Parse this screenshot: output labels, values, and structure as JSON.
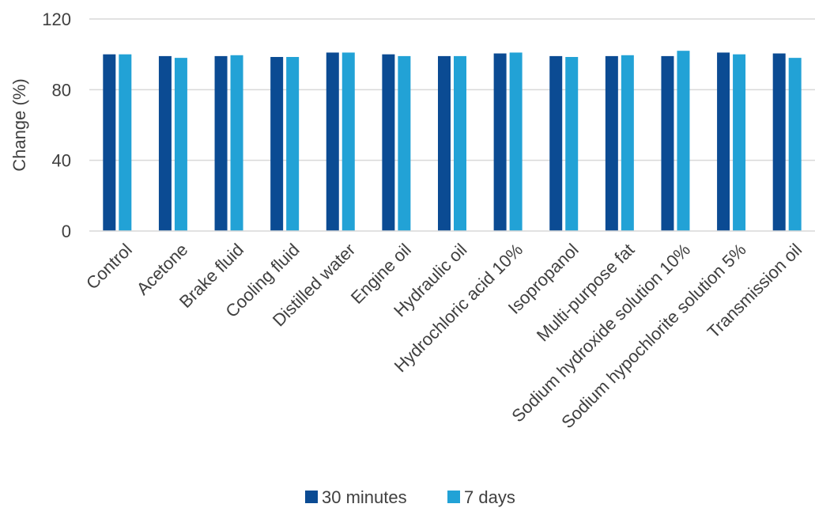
{
  "chart_data": {
    "type": "bar",
    "title": "",
    "xlabel": "",
    "ylabel": "Change (%)",
    "ylim": [
      0,
      120
    ],
    "yticks": [
      0,
      40,
      80,
      120
    ],
    "grid": true,
    "legend_position": "bottom",
    "categories": [
      "Control",
      "Acetone",
      "Brake fluid",
      "Cooling fluid",
      "Distilled water",
      "Engine oil",
      "Hydraulic oil",
      "Hydrochloric acid 10%",
      "Isopropanol",
      "Multi-purpose fat",
      "Sodium hydroxide solution 10%",
      "Sodium hypochlorite solution 5%",
      "Transmission oil"
    ],
    "series": [
      {
        "name": "30 minutes",
        "color": "#0b4b93",
        "values": [
          100,
          99,
          99,
          98.5,
          101,
          100,
          99,
          100.5,
          99,
          99,
          99,
          101,
          100.5
        ]
      },
      {
        "name": "7 days",
        "color": "#22a2d6",
        "values": [
          100,
          98,
          99.5,
          98.5,
          101,
          99,
          99,
          101,
          98.5,
          99.5,
          102,
          100,
          98
        ]
      }
    ]
  }
}
